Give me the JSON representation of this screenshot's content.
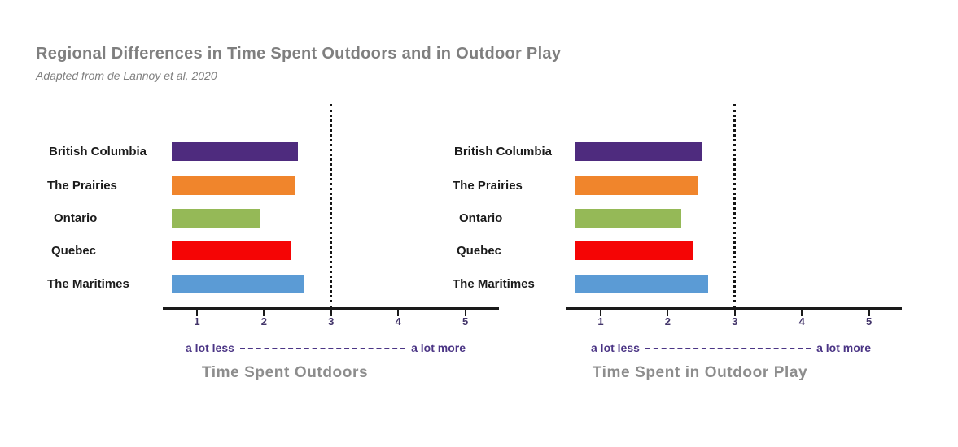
{
  "header": {
    "title": "Regional Differences in Time Spent Outdoors and in Outdoor Play",
    "subtitle": "Adapted from de Lannoy et al, 2020"
  },
  "colors": {
    "title_gray": "#7f7f7f",
    "axis_title_gray": "#8d8d8d",
    "scale_text_purple": "#4b3585",
    "tick_text_purple": "#43356a",
    "axis_black": "#1a1a1a"
  },
  "regions": [
    {
      "name": "British Columbia",
      "color": "#4e2b7e"
    },
    {
      "name": "The Prairies",
      "color": "#f0852c"
    },
    {
      "name": "Ontario",
      "color": "#95b957"
    },
    {
      "name": "Quebec",
      "color": "#f50505"
    },
    {
      "name": "The Maritimes",
      "color": "#5b9bd5"
    }
  ],
  "chart_data": [
    {
      "type": "bar",
      "orientation": "horizontal",
      "title": "Time Spent Outdoors",
      "categories": [
        "British Columbia",
        "The Prairies",
        "Ontario",
        "Quebec",
        "The Maritimes"
      ],
      "values": [
        2.5,
        2.45,
        1.95,
        2.4,
        2.6
      ],
      "bar_colors": [
        "#4e2b7e",
        "#f0852c",
        "#95b957",
        "#f50505",
        "#5b9bd5"
      ],
      "xlim": [
        1,
        5
      ],
      "ticks": [
        "1",
        "2",
        "3",
        "4",
        "5"
      ],
      "reference_line_x": 3,
      "scale_label_left": "a lot less",
      "scale_label_right": "a lot more",
      "grid": "off",
      "legend": "none"
    },
    {
      "type": "bar",
      "orientation": "horizontal",
      "title": "Time Spent in Outdoor Play",
      "categories": [
        "British Columbia",
        "The Prairies",
        "Ontario",
        "Quebec",
        "The Maritimes"
      ],
      "values": [
        2.5,
        2.45,
        2.2,
        2.38,
        2.6
      ],
      "bar_colors": [
        "#4e2b7e",
        "#f0852c",
        "#95b957",
        "#f50505",
        "#5b9bd5"
      ],
      "xlim": [
        1,
        5
      ],
      "ticks": [
        "1",
        "2",
        "3",
        "4",
        "5"
      ],
      "reference_line_x": 3,
      "scale_label_left": "a lot less",
      "scale_label_right": "a lot more",
      "grid": "off",
      "legend": "none"
    }
  ]
}
